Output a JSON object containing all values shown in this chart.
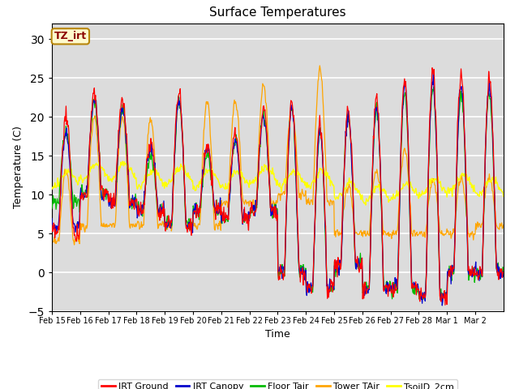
{
  "title": "Surface Temperatures",
  "xlabel": "Time",
  "ylabel": "Temperature (C)",
  "ylim": [
    -5,
    32
  ],
  "yticks": [
    -5,
    0,
    5,
    10,
    15,
    20,
    25,
    30
  ],
  "date_labels": [
    "Feb 15",
    "Feb 16",
    "Feb 17",
    "Feb 18",
    "Feb 19",
    "Feb 20",
    "Feb 21",
    "Feb 22",
    "Feb 23",
    "Feb 24",
    "Feb 25",
    "Feb 26",
    "Feb 27",
    "Feb 28",
    "Mar 1",
    "Mar 2"
  ],
  "annotation_text": "TZ_irt",
  "annotation_color": "#8B0000",
  "annotation_bg": "#FFFACD",
  "annotation_border": "#B8860B",
  "bg_color": "#DCDCDC",
  "plot_bg": "#DCDCDC",
  "colors": {
    "IRT Ground": "#FF0000",
    "IRT Canopy": "#0000CC",
    "Floor Tair": "#00BB00",
    "Tower TAir": "#FFA500",
    "TsoilD_2cm": "#FFFF00"
  },
  "legend_colors": [
    "#FF0000",
    "#0000CC",
    "#00BB00",
    "#FFA500",
    "#FFFF00"
  ],
  "legend_labels": [
    "IRT Ground",
    "IRT Canopy",
    "Floor Tair",
    "Tower TAir",
    "TsoilD_2cm"
  ]
}
